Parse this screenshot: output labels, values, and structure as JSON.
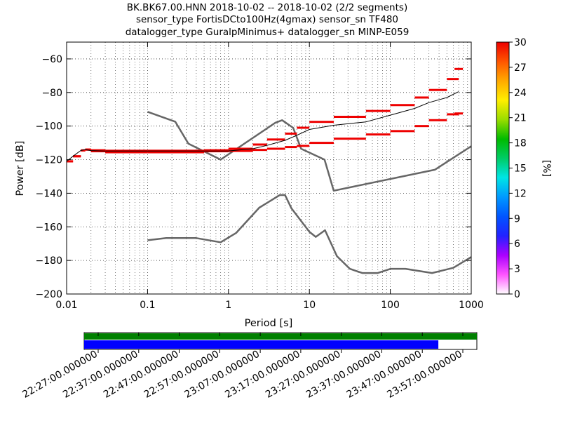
{
  "figure": {
    "title_lines": [
      "BK.BK67.00.HNN   2018-10-02 -- 2018-10-02  (2/2 segments)",
      "sensor_type FortisDCto100Hz(4gmax) sensor_sn TF480",
      "datalogger_type GuralpMinimus+ datalogger_sn MINP-E059"
    ]
  },
  "chart_data": {
    "type": "line",
    "title": "BK.BK67.00.HNN   2018-10-02 -- 2018-10-02  (2/2 segments)",
    "xlabel": "Period [s]",
    "ylabel": "Power [dB]",
    "x_scale": "log",
    "xlim": [
      0.01,
      1000
    ],
    "ylim": [
      -200,
      -50
    ],
    "grid": true,
    "x_ticks": [
      {
        "value": 0.01,
        "label": "0.01"
      },
      {
        "value": 0.1,
        "label": "0.1"
      },
      {
        "value": 1,
        "label": "1"
      },
      {
        "value": 10,
        "label": "10"
      },
      {
        "value": 100,
        "label": "100"
      },
      {
        "value": 1000,
        "label": "1000"
      }
    ],
    "y_ticks": [
      {
        "value": -60,
        "label": "−60"
      },
      {
        "value": -80,
        "label": "−80"
      },
      {
        "value": -100,
        "label": "−100"
      },
      {
        "value": -120,
        "label": "−120"
      },
      {
        "value": -140,
        "label": "−140"
      },
      {
        "value": -160,
        "label": "−160"
      },
      {
        "value": -180,
        "label": "−180"
      },
      {
        "value": -200,
        "label": "−200"
      }
    ],
    "series": [
      {
        "role": "noise-model-high",
        "color": "#666666",
        "x": [
          0.1,
          0.22,
          0.32,
          0.8,
          3.8,
          4.6,
          6.3,
          7.9,
          15.4,
          20,
          354.8,
          1000
        ],
        "y": [
          -91.5,
          -97.4,
          -110.5,
          -120,
          -98,
          -96.5,
          -101,
          -113.5,
          -120,
          -138.5,
          -126,
          -112
        ]
      },
      {
        "role": "noise-model-low",
        "color": "#666666",
        "x": [
          0.1,
          0.17,
          0.4,
          0.8,
          1.24,
          2.4,
          4.3,
          5,
          6,
          10,
          12,
          15.6,
          21.9,
          31.6,
          45,
          70,
          101,
          154,
          328,
          600,
          1000
        ],
        "y": [
          -168,
          -166.7,
          -166.7,
          -169.2,
          -163.7,
          -148.6,
          -141.1,
          -141.1,
          -149,
          -163,
          -166,
          -162,
          -177.5,
          -185,
          -187.5,
          -187.5,
          -185,
          -185,
          -187.5,
          -184.4,
          -178
        ]
      },
      {
        "role": "mode",
        "color": "#000000",
        "x": [
          0.01,
          0.012,
          0.015,
          0.017,
          0.02,
          0.03,
          0.1,
          0.5,
          1,
          2,
          3,
          5,
          7,
          10,
          20,
          50,
          100,
          200,
          300,
          500,
          700
        ],
        "y": [
          -121,
          -118,
          -114.5,
          -114,
          -114.6,
          -114.9,
          -114.9,
          -114.9,
          -114.8,
          -113.5,
          -111.5,
          -108.5,
          -105.5,
          -102,
          -99.5,
          -97.5,
          -93.5,
          -89.5,
          -86,
          -83,
          -79.5
        ]
      },
      {
        "role": "pdf-upper-percentile",
        "color": "#ee0000",
        "x": [
          0.01,
          0.012,
          0.015,
          0.017,
          0.02,
          0.03,
          0.1,
          0.5,
          1,
          2,
          3,
          5,
          7,
          10,
          20,
          50,
          100,
          200,
          300,
          500,
          700
        ],
        "y": [
          -121,
          -118,
          -114.5,
          -114,
          -114.4,
          -114.7,
          -114.7,
          -114.4,
          -113.5,
          -111,
          -108,
          -104.5,
          -101,
          -97.5,
          -94.5,
          -91,
          -87.5,
          -83,
          -78.5,
          -72,
          -66
        ]
      },
      {
        "role": "pdf-lower-percentile",
        "color": "#ee0000",
        "x": [
          0.01,
          0.012,
          0.015,
          0.017,
          0.02,
          0.03,
          0.1,
          0.5,
          1,
          2,
          3,
          5,
          7,
          10,
          20,
          50,
          100,
          200,
          300,
          500,
          700
        ],
        "y": [
          -121,
          -118,
          -114.5,
          -114,
          -115,
          -115.6,
          -115.6,
          -115,
          -114.8,
          -114.2,
          -113.5,
          -112.5,
          -111.8,
          -110,
          -107.5,
          -105,
          -103,
          -100,
          -96.5,
          -93,
          -92.5
        ]
      }
    ]
  },
  "colorbar": {
    "label": "[%]",
    "min": 0,
    "max": 30,
    "ticks": [
      "0",
      "3",
      "6",
      "9",
      "12",
      "15",
      "18",
      "21",
      "24",
      "27",
      "30"
    ],
    "colormap": [
      "#ffffff",
      "#ff55ff",
      "#aa00ff",
      "#2222ff",
      "#0055ff",
      "#0099ff",
      "#00e5e5",
      "#00cc66",
      "#00bb00",
      "#99dd00",
      "#ffee00",
      "#ffaa00",
      "#ff5500",
      "#ee0000"
    ]
  },
  "timeline": {
    "track_top_color": "#008000",
    "track_bottom_color": "#0000ff",
    "coverage_end_fraction": 0.902,
    "tick_labels": [
      "22:27:00.000000",
      "22:37:00.000000",
      "22:47:00.000000",
      "22:57:00.000000",
      "23:07:00.000000",
      "23:17:00.000000",
      "23:27:00.000000",
      "23:37:00.000000",
      "23:47:00.000000",
      "23:57:00.000000"
    ]
  }
}
